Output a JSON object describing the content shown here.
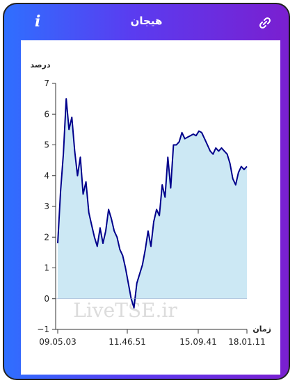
{
  "header": {
    "title": "هیجان",
    "info_icon": "info-icon",
    "link_icon": "link-icon",
    "gradient": [
      "#2f6fff",
      "#7a1fd0"
    ]
  },
  "watermark": "LiveTSE.ir",
  "chart_data": {
    "type": "area",
    "ylabel": "درصد",
    "xlabel": "زمان",
    "ylim": [
      -1,
      7
    ],
    "yticks": [
      7,
      6,
      5,
      4,
      3,
      2,
      1,
      0,
      -1
    ],
    "xtick_labels": [
      "09.05.03",
      "11.46.51",
      "15.09.41",
      "18.01.11"
    ],
    "line_color": "#00008b",
    "fill_color": "#cce8f4",
    "series": [
      {
        "values": [
          1.8,
          3.5,
          4.7,
          6.5,
          5.5,
          5.9,
          4.8,
          4.0,
          4.6,
          3.4,
          3.8,
          2.8,
          2.4,
          2.0,
          1.7,
          2.3,
          1.8,
          2.2,
          2.9,
          2.6,
          2.2,
          2.0,
          1.6,
          1.4,
          1.0,
          0.5,
          0.0,
          -0.3,
          0.5,
          0.8,
          1.1,
          1.6,
          2.2,
          1.7,
          2.5,
          2.9,
          2.7,
          3.7,
          3.3,
          4.6,
          3.6,
          5.0,
          5.0,
          5.1,
          5.4,
          5.2,
          5.25,
          5.3,
          5.35,
          5.3,
          5.45,
          5.4,
          5.2,
          5.0,
          4.8,
          4.7,
          4.9,
          4.8,
          4.9,
          4.8,
          4.7,
          4.4,
          3.9,
          3.7,
          4.1,
          4.3,
          4.2,
          4.3
        ]
      }
    ]
  }
}
